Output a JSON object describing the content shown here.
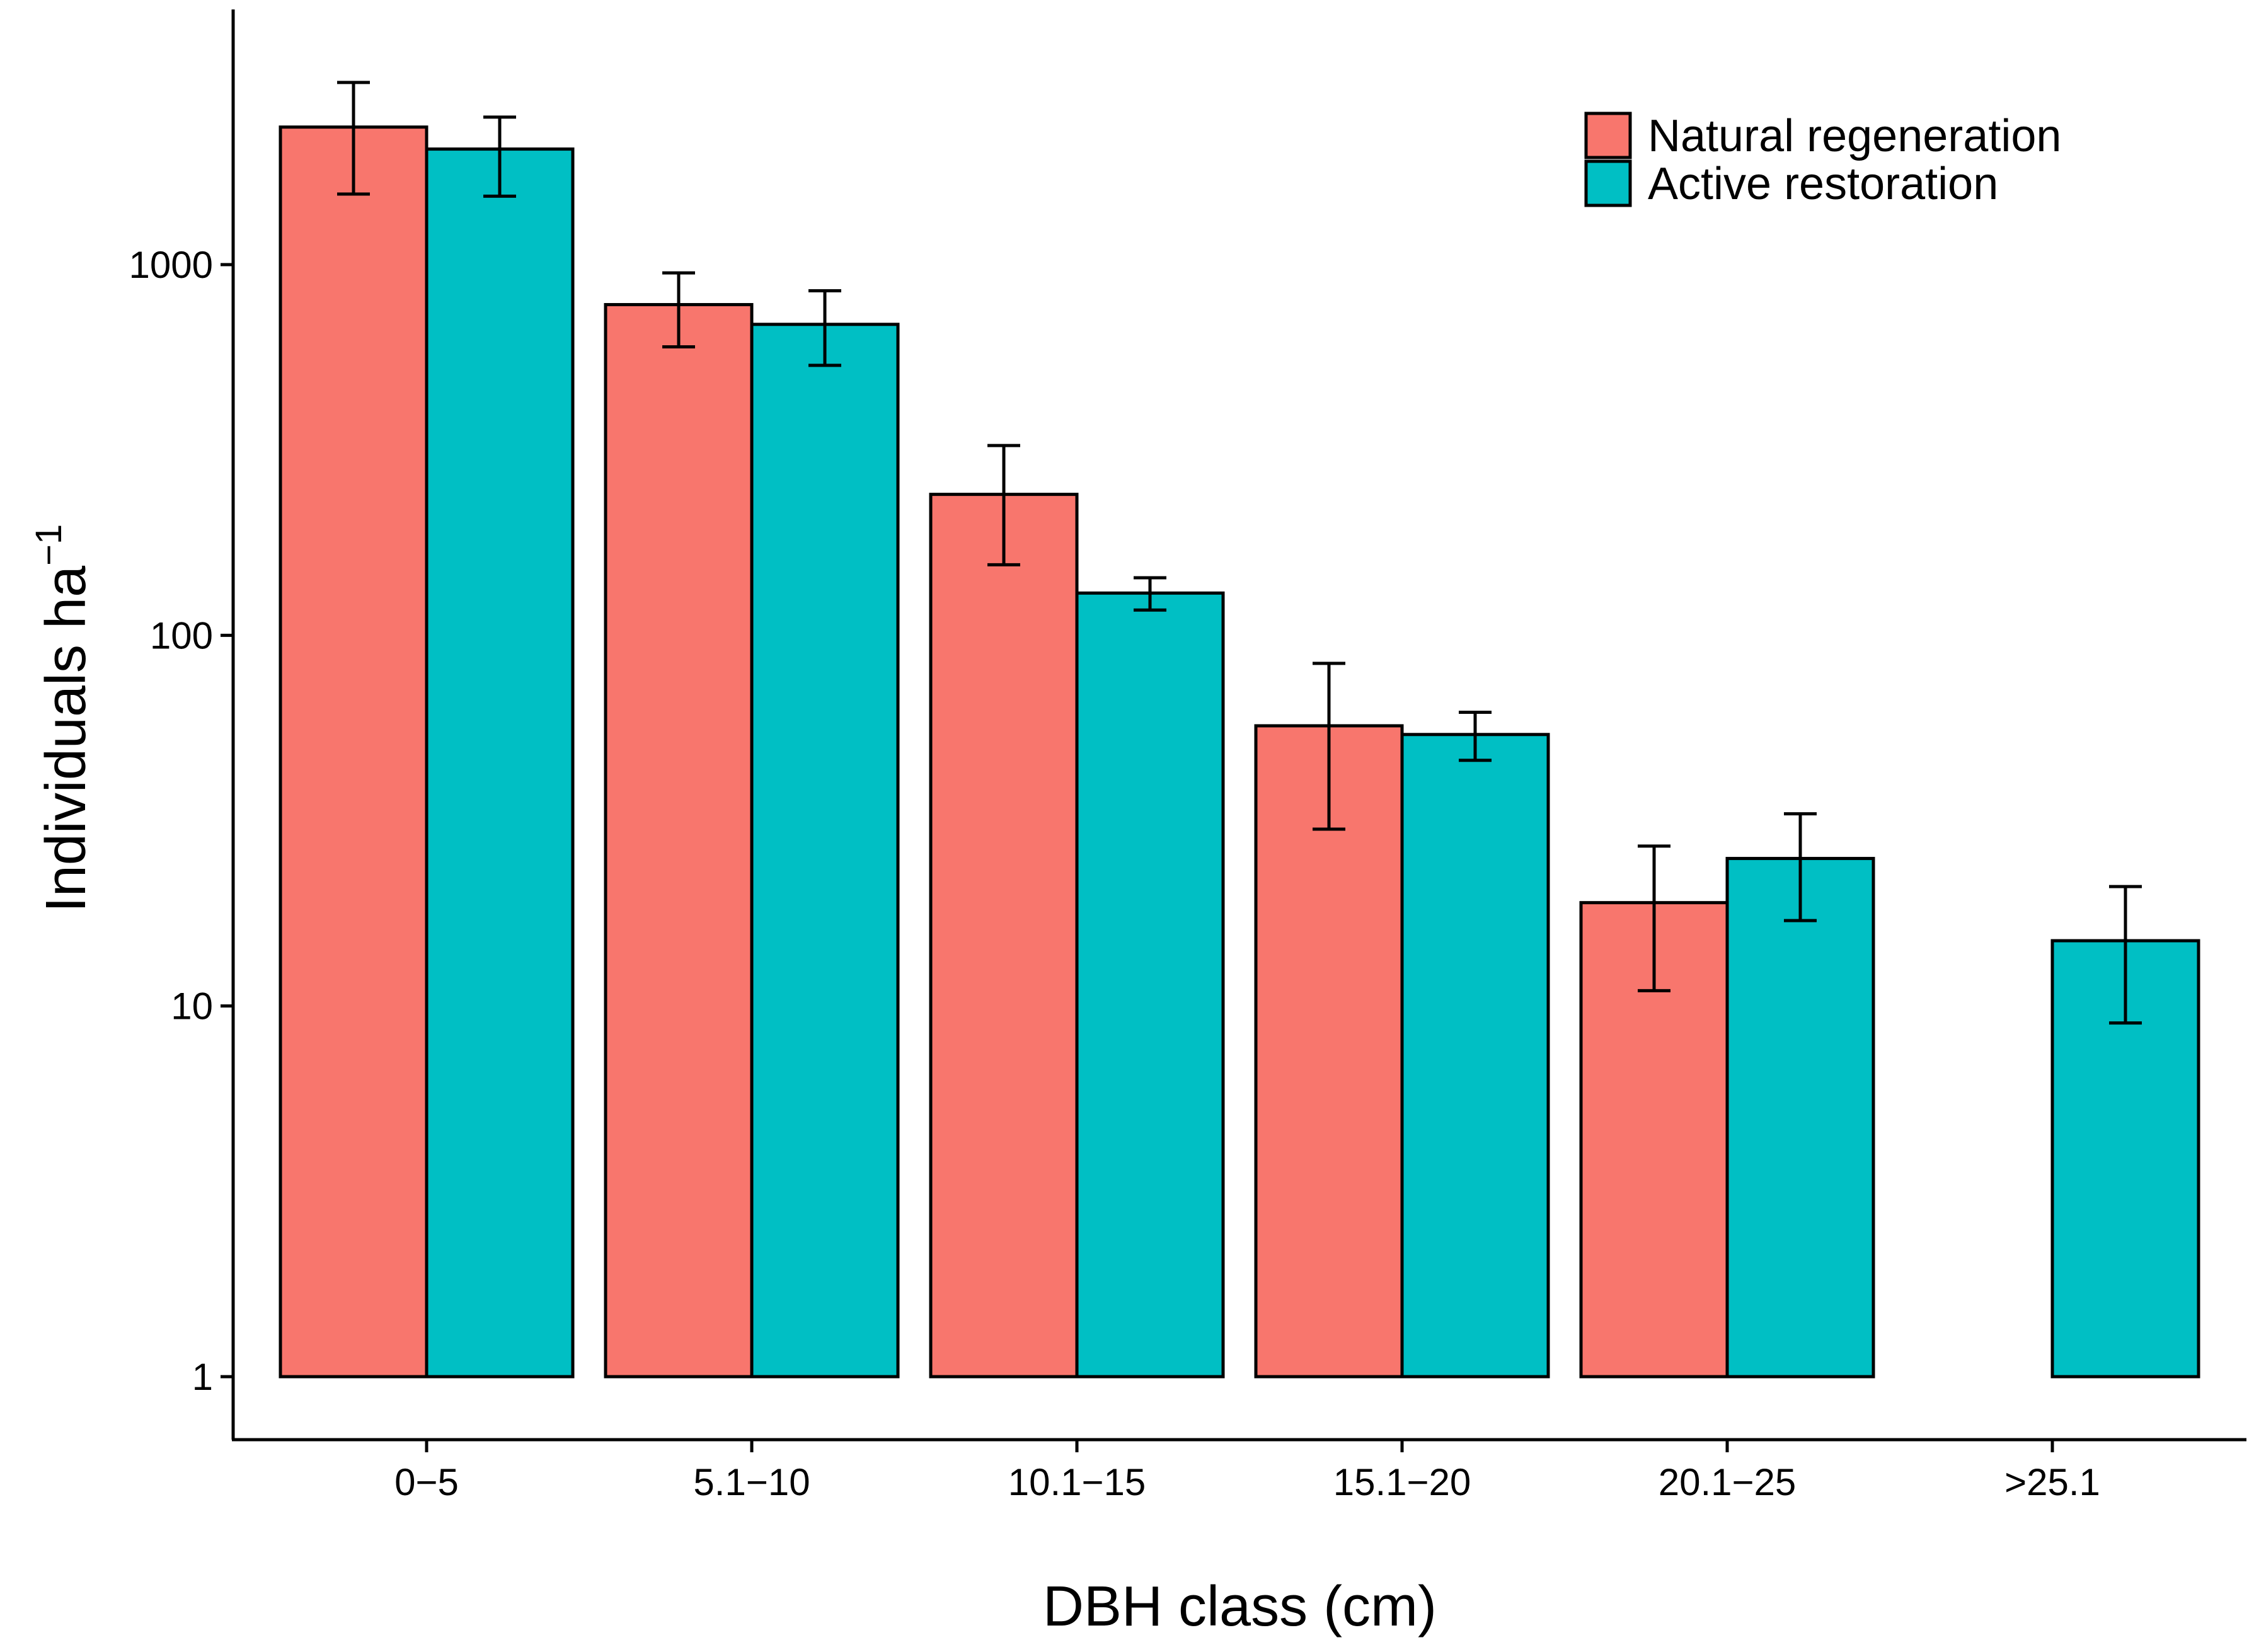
{
  "chart_data": {
    "type": "bar",
    "scale": "log",
    "title": "",
    "xlabel": "DBH class (cm)",
    "ylabel": "Individuals ha",
    "ylabel_superscript": "−1",
    "categories": [
      "0−5",
      "5.1−10",
      "10.1−15",
      "15.1−20",
      "20.1−25",
      ">25.1"
    ],
    "yticks": [
      1,
      10,
      100,
      1000
    ],
    "ytick_labels": [
      "1",
      "10",
      "100",
      "1000"
    ],
    "ylim": [
      0.75,
      4500
    ],
    "grid": false,
    "legend_position": "top-right",
    "series": [
      {
        "name": "Natural regeneration",
        "color": "#F8766D",
        "values": [
          2350,
          780,
          240,
          57,
          19,
          1
        ],
        "err_low": [
          1550,
          600,
          155,
          30,
          11,
          null
        ],
        "err_high": [
          3100,
          950,
          325,
          84,
          27,
          null
        ]
      },
      {
        "name": "Active restoration",
        "color": "#00BFC4",
        "values": [
          2050,
          690,
          130,
          54,
          25,
          15
        ],
        "err_low": [
          1530,
          535,
          117,
          46,
          17,
          9
        ],
        "err_high": [
          2500,
          850,
          143,
          62,
          33,
          21
        ]
      }
    ]
  }
}
